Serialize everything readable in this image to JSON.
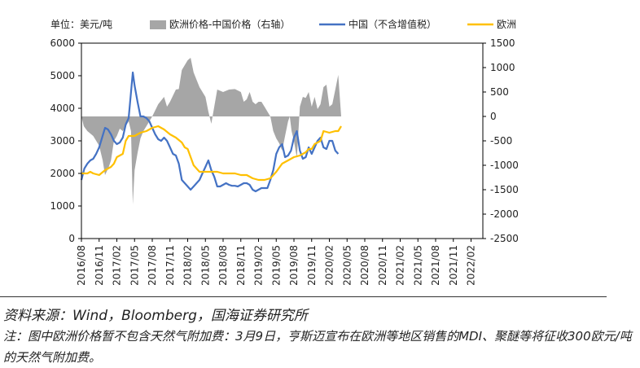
{
  "chart_data": {
    "type": "line",
    "unit_label": "单位：美元/吨",
    "legend": {
      "spread": "欧洲价格-中国价格（右轴）",
      "china": "中国（不含增值税）",
      "europe": "欧洲"
    },
    "colors": {
      "spread": "#a6a6a6",
      "china": "#4472c4",
      "europe": "#ffc000"
    },
    "left_axis": {
      "min": 0,
      "max": 6000,
      "ticks": [
        "0",
        "1000",
        "2000",
        "3000",
        "4000",
        "5000",
        "6000"
      ]
    },
    "right_axis": {
      "min": -2500,
      "max": 1500,
      "ticks": [
        "-2500",
        "-2000",
        "-1500",
        "-1000",
        "-500",
        "0",
        "500",
        "1000",
        "1500"
      ]
    },
    "x_ticks": [
      "2016/08",
      "2016/11",
      "2017/02",
      "2017/05",
      "2017/08",
      "2017/11",
      "2018/02",
      "2018/05",
      "2018/08",
      "2018/11",
      "2019/02",
      "2019/05",
      "2019/08",
      "2019/11",
      "2020/02",
      "2020/05",
      "2020/08",
      "2020/11",
      "2021/02",
      "2021/05",
      "2021/08",
      "2021/11",
      "2022/02"
    ],
    "series": [
      {
        "key": "china",
        "name": "中国（不含增值税）",
        "axis": "left",
        "points": [
          [
            0,
            1800
          ],
          [
            0.5,
            2150
          ],
          [
            1,
            2300
          ],
          [
            1.5,
            2400
          ],
          [
            2,
            2450
          ],
          [
            2.5,
            2600
          ],
          [
            3,
            2800
          ],
          [
            3.5,
            3100
          ],
          [
            4,
            3400
          ],
          [
            4.5,
            3350
          ],
          [
            5,
            3200
          ],
          [
            5.5,
            3000
          ],
          [
            6,
            2900
          ],
          [
            6.5,
            2950
          ],
          [
            7,
            3100
          ],
          [
            7.5,
            3500
          ],
          [
            8,
            3700
          ],
          [
            8.7,
            5100
          ],
          [
            9,
            4700
          ],
          [
            9.5,
            4200
          ],
          [
            10,
            3750
          ],
          [
            10.5,
            3750
          ],
          [
            11,
            3700
          ],
          [
            11.5,
            3600
          ],
          [
            12,
            3400
          ],
          [
            12.5,
            3200
          ],
          [
            13,
            3050
          ],
          [
            13.5,
            3000
          ],
          [
            14,
            3100
          ],
          [
            14.5,
            3000
          ],
          [
            15,
            2800
          ],
          [
            15.5,
            2600
          ],
          [
            16,
            2550
          ],
          [
            16.5,
            2300
          ],
          [
            17,
            1800
          ],
          [
            17.5,
            1700
          ],
          [
            18,
            1600
          ],
          [
            18.5,
            1500
          ],
          [
            19,
            1600
          ],
          [
            19.5,
            1700
          ],
          [
            20,
            1800
          ],
          [
            20.5,
            2000
          ],
          [
            21,
            2200
          ],
          [
            21.5,
            2400
          ],
          [
            22,
            2100
          ],
          [
            22.5,
            1900
          ],
          [
            23,
            1600
          ],
          [
            23.5,
            1600
          ],
          [
            24,
            1650
          ],
          [
            24.5,
            1700
          ],
          [
            25,
            1650
          ],
          [
            25.5,
            1620
          ],
          [
            26,
            1620
          ],
          [
            26.5,
            1600
          ],
          [
            27,
            1650
          ],
          [
            27.5,
            1700
          ],
          [
            28,
            1700
          ],
          [
            28.5,
            1650
          ],
          [
            29,
            1500
          ],
          [
            29.5,
            1450
          ],
          [
            30,
            1500
          ],
          [
            30.5,
            1550
          ],
          [
            31,
            1550
          ],
          [
            31.5,
            1550
          ],
          [
            32,
            1800
          ],
          [
            32.5,
            2100
          ],
          [
            33,
            2600
          ],
          [
            33.5,
            2800
          ],
          [
            34,
            2900
          ],
          [
            34.5,
            2500
          ],
          [
            35,
            2550
          ],
          [
            35.5,
            2700
          ],
          [
            36,
            3100
          ],
          [
            36.5,
            3300
          ],
          [
            37,
            2700
          ],
          [
            37.5,
            2450
          ],
          [
            38,
            2500
          ],
          [
            38.5,
            2800
          ],
          [
            39,
            2600
          ],
          [
            39.5,
            2800
          ],
          [
            40,
            3000
          ],
          [
            40.5,
            3100
          ],
          [
            41,
            2800
          ],
          [
            41.5,
            2750
          ],
          [
            42,
            3000
          ],
          [
            42.5,
            3000
          ],
          [
            43,
            2700
          ],
          [
            43.5,
            2600
          ]
        ]
      },
      {
        "key": "europe",
        "name": "欧洲",
        "axis": "left",
        "points": [
          [
            0,
            2000
          ],
          [
            1,
            2000
          ],
          [
            1.5,
            2050
          ],
          [
            2,
            2000
          ],
          [
            3,
            1950
          ],
          [
            4,
            2100
          ],
          [
            5,
            2200
          ],
          [
            5.5,
            2300
          ],
          [
            6,
            2500
          ],
          [
            7,
            2600
          ],
          [
            7.5,
            3000
          ],
          [
            8,
            3150
          ],
          [
            9,
            3150
          ],
          [
            10,
            3250
          ],
          [
            11,
            3300
          ],
          [
            12,
            3400
          ],
          [
            13,
            3450
          ],
          [
            14,
            3350
          ],
          [
            15,
            3200
          ],
          [
            16,
            3100
          ],
          [
            17,
            2950
          ],
          [
            17.5,
            2800
          ],
          [
            18,
            2750
          ],
          [
            19,
            2250
          ],
          [
            20,
            2050
          ],
          [
            21,
            2050
          ],
          [
            22,
            2050
          ],
          [
            23,
            2050
          ],
          [
            24,
            2000
          ],
          [
            25,
            2000
          ],
          [
            26,
            2000
          ],
          [
            27,
            1950
          ],
          [
            28,
            1950
          ],
          [
            29,
            1850
          ],
          [
            30,
            1800
          ],
          [
            31,
            1800
          ],
          [
            32,
            1850
          ],
          [
            33,
            2050
          ],
          [
            34,
            2300
          ],
          [
            35,
            2400
          ],
          [
            36,
            2500
          ],
          [
            37,
            2550
          ],
          [
            38,
            2650
          ],
          [
            38.5,
            2750
          ],
          [
            39,
            2750
          ],
          [
            39.5,
            2900
          ],
          [
            40,
            2950
          ],
          [
            40.5,
            3000
          ],
          [
            41,
            3300
          ],
          [
            42,
            3250
          ],
          [
            43,
            3300
          ],
          [
            43.5,
            3300
          ],
          [
            44,
            3450
          ]
        ]
      },
      {
        "key": "spread",
        "name": "欧洲价格-中国价格（右轴）",
        "axis": "right",
        "type": "area",
        "points": [
          [
            0,
            0
          ],
          [
            0.4,
            -200
          ],
          [
            1,
            -300
          ],
          [
            2,
            -400
          ],
          [
            3,
            -600
          ],
          [
            3.6,
            -900
          ],
          [
            4,
            -1200
          ],
          [
            4.6,
            -1050
          ],
          [
            5,
            -900
          ],
          [
            5.5,
            -500
          ],
          [
            6,
            -400
          ],
          [
            6.5,
            -250
          ],
          [
            7,
            -300
          ],
          [
            7.5,
            -200
          ],
          [
            8,
            -100
          ],
          [
            8.4,
            -300
          ],
          [
            8.7,
            -1800
          ],
          [
            9,
            -1100
          ],
          [
            9.5,
            -750
          ],
          [
            10,
            -450
          ],
          [
            10.5,
            -300
          ],
          [
            11,
            -200
          ],
          [
            12,
            0
          ],
          [
            13,
            250
          ],
          [
            14,
            400
          ],
          [
            14.5,
            200
          ],
          [
            15,
            300
          ],
          [
            16,
            550
          ],
          [
            16.5,
            560
          ],
          [
            17,
            950
          ],
          [
            18,
            1150
          ],
          [
            18.5,
            1200
          ],
          [
            19,
            900
          ],
          [
            20,
            600
          ],
          [
            21,
            400
          ],
          [
            21.5,
            100
          ],
          [
            22,
            -150
          ],
          [
            23,
            550
          ],
          [
            24,
            500
          ],
          [
            25,
            550
          ],
          [
            26,
            560
          ],
          [
            27,
            500
          ],
          [
            27.5,
            300
          ],
          [
            28,
            350
          ],
          [
            28.5,
            500
          ],
          [
            29,
            300
          ],
          [
            29.5,
            250
          ],
          [
            30,
            300
          ],
          [
            30.5,
            300
          ],
          [
            31,
            200
          ],
          [
            32,
            0
          ],
          [
            32.5,
            -300
          ],
          [
            33,
            -450
          ],
          [
            33.5,
            -550
          ],
          [
            34,
            -700
          ],
          [
            34.5,
            -400
          ],
          [
            35,
            -100
          ],
          [
            35.3,
            0
          ],
          [
            35.6,
            -300
          ],
          [
            36,
            -500
          ],
          [
            36.5,
            -850
          ],
          [
            37,
            200
          ],
          [
            37.5,
            400
          ],
          [
            38,
            380
          ],
          [
            38.5,
            500
          ],
          [
            39,
            200
          ],
          [
            39.5,
            400
          ],
          [
            40,
            150
          ],
          [
            40.5,
            250
          ],
          [
            41,
            600
          ],
          [
            41.5,
            650
          ],
          [
            42,
            200
          ],
          [
            42.5,
            250
          ],
          [
            43,
            550
          ],
          [
            43.5,
            850
          ],
          [
            44,
            0
          ]
        ]
      }
    ]
  },
  "footer": {
    "source": "资料来源：Wind，Bloomberg，国海证券研究所",
    "note": "注：图中欧洲价格暂不包含天然气附加费：3月9日，亨斯迈宣布在欧洲等地区销售的MDI、聚醚等将征收300欧元/吨的天然气附加费。"
  }
}
